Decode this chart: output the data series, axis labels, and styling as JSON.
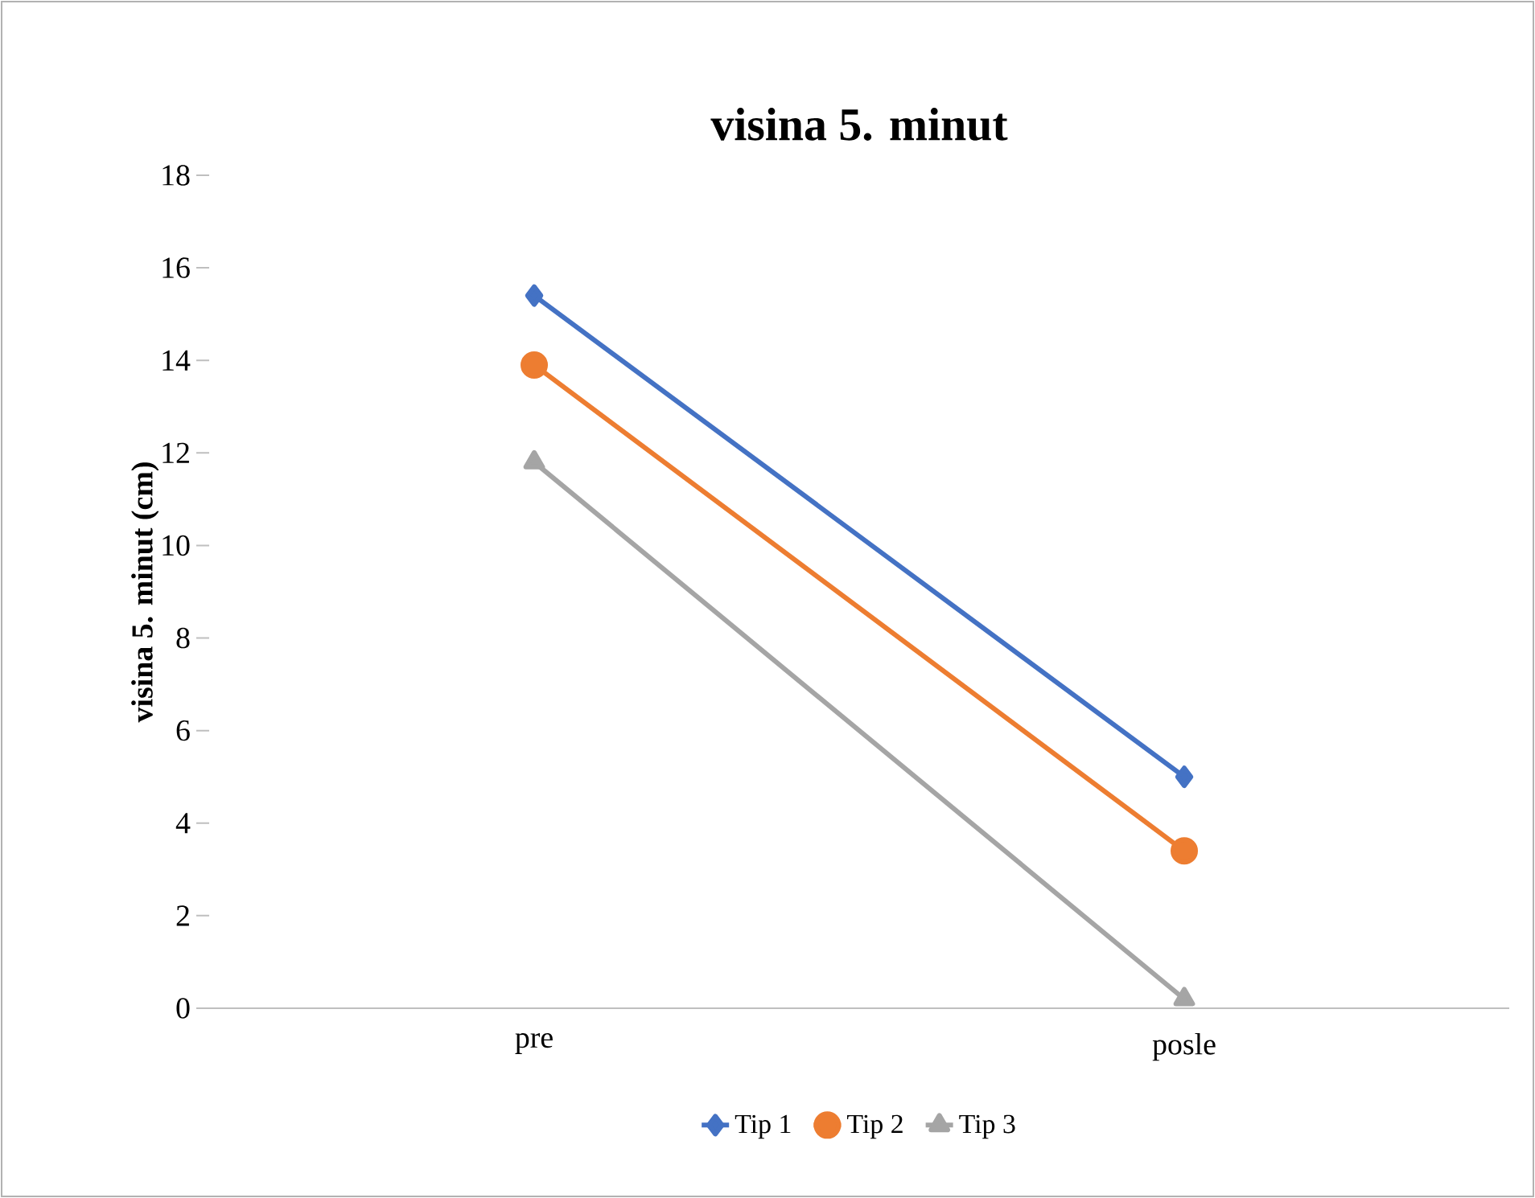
{
  "chart_data": {
    "type": "line",
    "title": "visina 5. minut",
    "ylabel": "visina 5. minut (cm)",
    "categories": [
      "pre",
      "posle"
    ],
    "series": [
      {
        "name": "Tip 1",
        "color": "#4472c4",
        "marker": "diamond",
        "values": [
          15.4,
          5.0
        ]
      },
      {
        "name": "Tip 2",
        "color": "#ed7d31",
        "marker": "circle",
        "values": [
          13.9,
          3.4
        ]
      },
      {
        "name": "Tip 3",
        "color": "#a5a5a5",
        "marker": "triangle",
        "values": [
          11.8,
          0.2
        ]
      }
    ],
    "ylim": [
      0,
      18
    ],
    "yticks": [
      0,
      2,
      4,
      6,
      8,
      10,
      12,
      14,
      16,
      18
    ],
    "grid": false,
    "legend": "bottom"
  }
}
